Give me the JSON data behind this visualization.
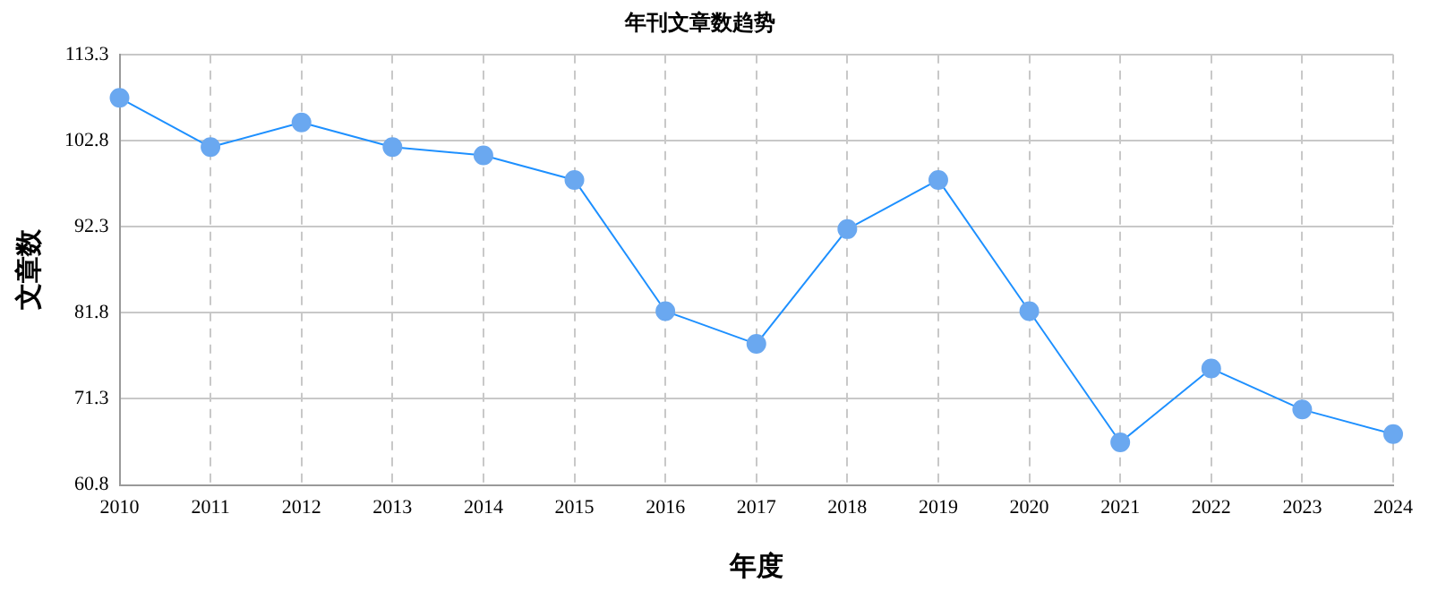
{
  "chart_data": {
    "type": "line",
    "title": "年刊文章数趋势",
    "xlabel": "年度",
    "ylabel": "文章数",
    "categories": [
      "2010",
      "2011",
      "2012",
      "2013",
      "2014",
      "2015",
      "2016",
      "2017",
      "2018",
      "2019",
      "2020",
      "2021",
      "2022",
      "2023",
      "2024"
    ],
    "series": [
      {
        "color": "#1e90ff",
        "values": [
          108,
          102,
          105,
          102,
          101,
          98,
          82,
          78,
          92,
          98,
          82,
          66,
          75,
          70,
          67
        ]
      }
    ],
    "ylim": [
      60.8,
      113.3
    ],
    "yticks": [
      60.8,
      71.3,
      81.8,
      92.3,
      102.8,
      113.3
    ],
    "grid": true,
    "marker": "circle",
    "line_style": "solid"
  }
}
